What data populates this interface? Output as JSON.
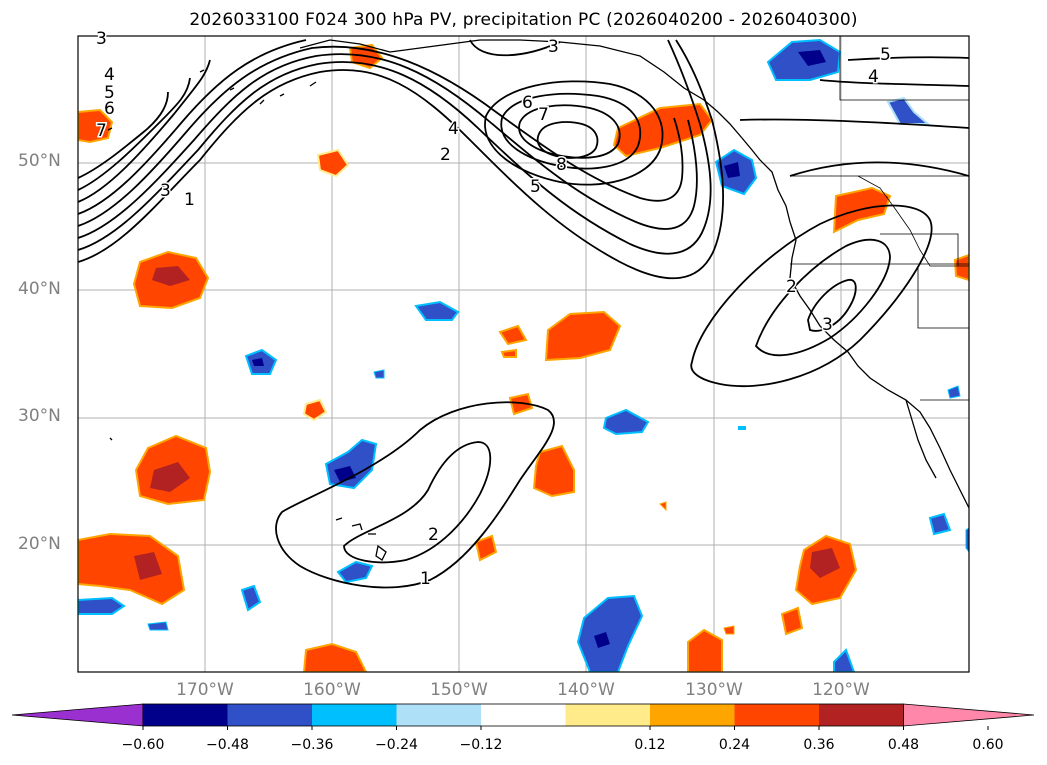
{
  "title": "2026033100 F024 300 hPa PV, precipitation PC (2026040200 - 2026040300)",
  "lat_labels": [
    "50°N",
    "40°N",
    "30°N",
    "20°N"
  ],
  "lon_labels": [
    "170°W",
    "160°W",
    "150°W",
    "140°W",
    "130°W",
    "120°W"
  ],
  "colorbar": {
    "ticks": [
      "−0.60",
      "−0.48",
      "−0.36",
      "−0.24",
      "−0.12",
      "0.12",
      "0.24",
      "0.36",
      "0.48",
      "0.60"
    ],
    "colors": [
      "#9b30d0",
      "#00008b",
      "#3050c8",
      "#00bfff",
      "#aee0f8",
      "#ffffff",
      "#ffeb8a",
      "#ffa500",
      "#ff4500",
      "#b22222",
      "#ff88aa"
    ]
  },
  "contour_labels": {
    "ridge": [
      "3",
      "4",
      "5",
      "6",
      "7",
      "3",
      "4",
      "2",
      "1"
    ],
    "pacific_high": [
      "3",
      "6",
      "7",
      "8",
      "5"
    ],
    "ne": [
      "5",
      "4"
    ],
    "california_low": [
      "2",
      "3"
    ],
    "hawaii": [
      "1",
      "2"
    ]
  },
  "colors": {
    "positive_dark": "#b22222",
    "positive": "#ff4500",
    "positive_edge": "#ffa500",
    "positive_light": "#ffeb8a",
    "negative_dark": "#00008b",
    "negative": "#3050c8",
    "negative_edge": "#00bfff",
    "negative_light": "#aee0f8"
  }
}
